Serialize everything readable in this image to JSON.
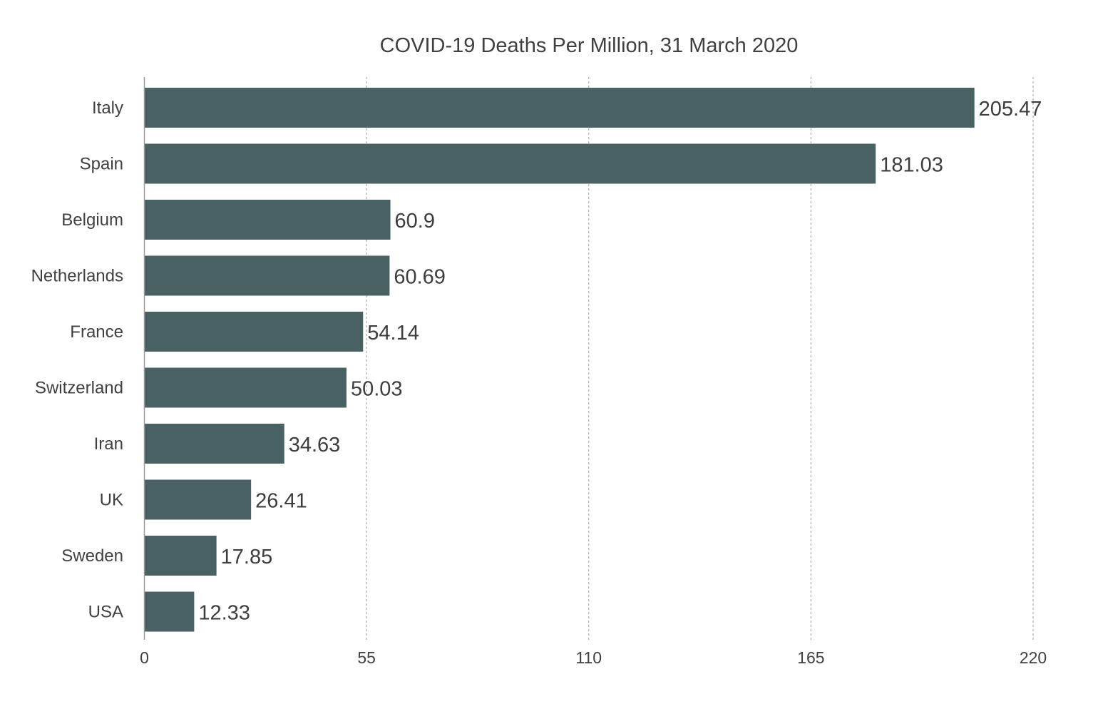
{
  "chart_data": {
    "type": "bar",
    "orientation": "horizontal",
    "title": "COVID-19 Deaths Per Million, 31 March 2020",
    "categories": [
      "Italy",
      "Spain",
      "Belgium",
      "Netherlands",
      "France",
      "Switzerland",
      "Iran",
      "UK",
      "Sweden",
      "USA"
    ],
    "values": [
      205.47,
      181.03,
      60.9,
      60.69,
      54.14,
      50.03,
      34.63,
      26.41,
      17.85,
      12.33
    ],
    "value_labels": [
      "205.47",
      "181.03",
      "60.9",
      "60.69",
      "54.14",
      "50.03",
      "34.63",
      "26.41",
      "17.85",
      "12.33"
    ],
    "xlabel": "",
    "ylabel": "",
    "xlim": [
      0,
      220
    ],
    "x_ticks": [
      0,
      55,
      110,
      165,
      220
    ],
    "x_tick_labels": [
      "0",
      "55",
      "110",
      "165",
      "220"
    ],
    "grid": true,
    "grid_style": "dashed-vertical",
    "legend": "none",
    "bar_color": "#4a6163",
    "text_color": "#404040"
  }
}
